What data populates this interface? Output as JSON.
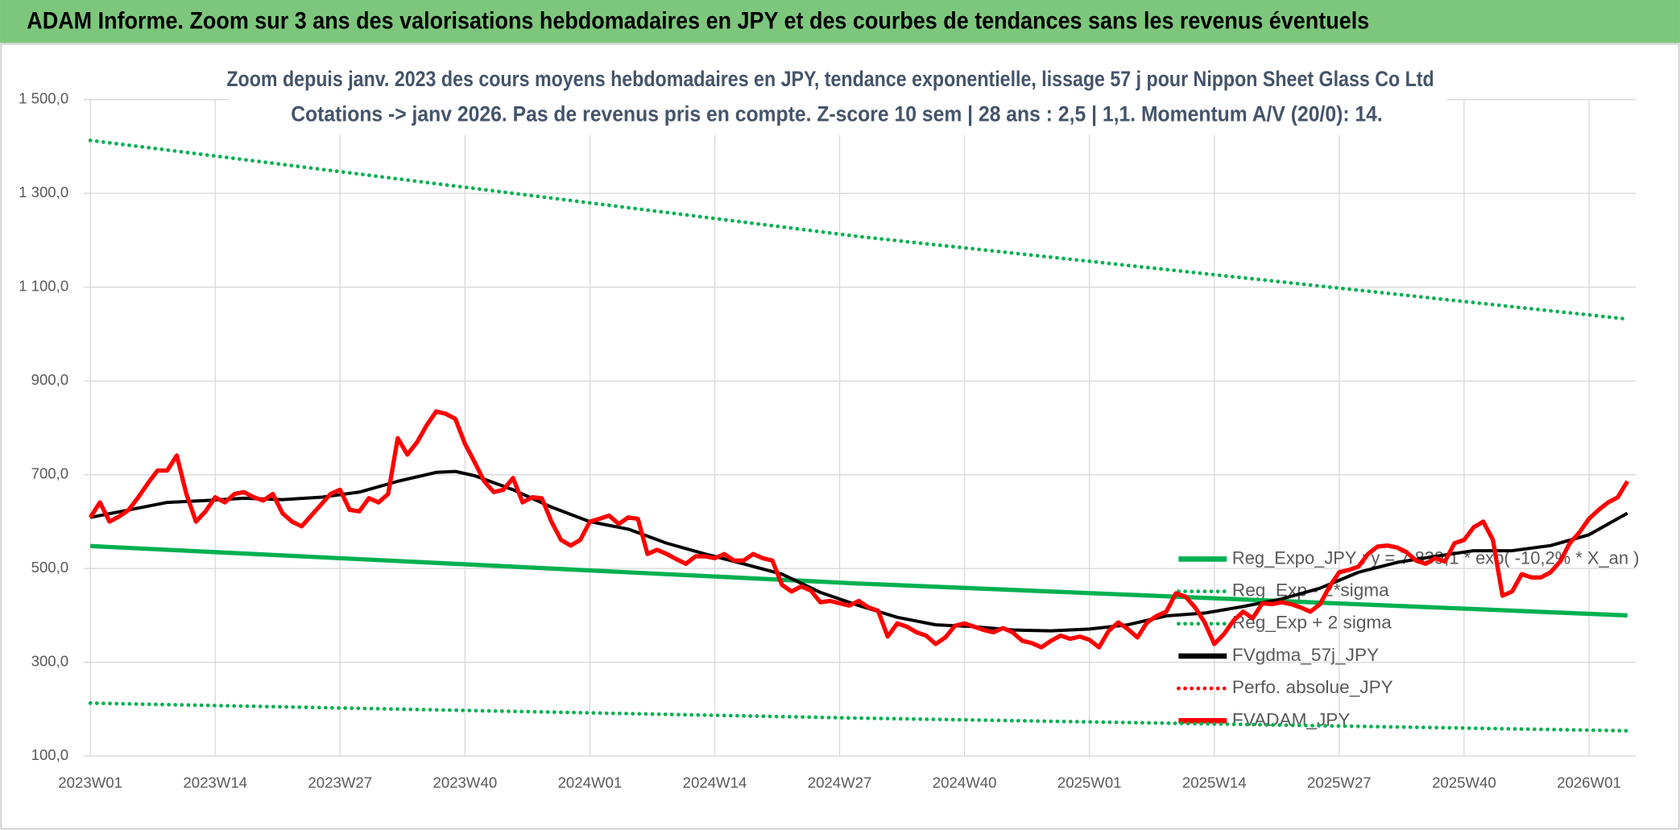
{
  "chart_data": {
    "type": "line",
    "title": "ADAM Informe. Zoom sur 3 ans des valorisations hebdomadaires en JPY et des courbes de tendances sans les revenus éventuels",
    "subtitle": [
      "Zoom depuis janv. 2023 des cours moyens hebdomadaires en JPY, tendance exponentielle, lissage 57 j pour Nippon Sheet Glass Co Ltd",
      "Cotations -> janv 2026. Pas de revenus pris en compte. Z-score 10 sem | 28 ans : 2,5 | 1,1. Momentum A/V (20/0): 14."
    ],
    "xlim": [
      -0.7,
      160.9
    ],
    "xticks": [
      {
        "value": 0,
        "label": "2023W01"
      },
      {
        "value": 13,
        "label": "2023W14"
      },
      {
        "value": 26,
        "label": "2023W27"
      },
      {
        "value": 39,
        "label": "2023W40"
      },
      {
        "value": 52,
        "label": "2024W01"
      },
      {
        "value": 65,
        "label": "2024W14"
      },
      {
        "value": 78,
        "label": "2024W27"
      },
      {
        "value": 91,
        "label": "2024W40"
      },
      {
        "value": 104,
        "label": "2025W01"
      },
      {
        "value": 117,
        "label": "2025W14"
      },
      {
        "value": 130,
        "label": "2025W27"
      },
      {
        "value": 143,
        "label": "2025W40"
      },
      {
        "value": 156,
        "label": "2026W01"
      }
    ],
    "ylim": [
      100,
      1500
    ],
    "yticks": [
      {
        "value": 100,
        "label": "100,0"
      },
      {
        "value": 300,
        "label": "300,0"
      },
      {
        "value": 500,
        "label": "500,0"
      },
      {
        "value": 700,
        "label": "700,0"
      },
      {
        "value": 900,
        "label": "900,0"
      },
      {
        "value": 1100,
        "label": "1 100,0"
      },
      {
        "value": 1300,
        "label": "1 300,0"
      },
      {
        "value": 1500,
        "label": "1 500,0"
      }
    ],
    "grid": true,
    "legend": "lower right",
    "series": [
      {
        "name": "Reg_Expo_JPY : y = 7 839,1 * exp( -10,2% * X_an )",
        "color": "#00b050",
        "line_style": "solid",
        "x": [
          0,
          80,
          160
        ],
        "values": [
          548,
          468,
          400
        ]
      },
      {
        "name": "Reg_Exp - 2*sigma",
        "color": "#00b050",
        "line_style": "dotted",
        "x": [
          0,
          80,
          160
        ],
        "values": [
          213,
          181,
          154
        ]
      },
      {
        "name": "Reg_Exp + 2 sigma",
        "color": "#00b050",
        "line_style": "dotted",
        "x": [
          0,
          80,
          160
        ],
        "values": [
          1413,
          1208,
          1032
        ]
      },
      {
        "name": "FVgdma_57j_JPY",
        "color": "#000000",
        "line_style": "solid",
        "x": [
          0,
          4,
          8,
          12,
          16,
          20,
          24,
          28,
          32,
          36,
          38,
          40,
          44,
          48,
          52,
          56,
          60,
          64,
          68,
          72,
          76,
          80,
          84,
          88,
          92,
          96,
          100,
          104,
          108,
          112,
          116,
          120,
          124,
          128,
          132,
          136,
          140,
          144,
          148,
          152,
          156,
          160
        ],
        "values": [
          609,
          625,
          641,
          645,
          650,
          647,
          652,
          663,
          686,
          705,
          707,
          698,
          668,
          631,
          600,
          584,
          554,
          531,
          510,
          488,
          449,
          421,
          396,
          380,
          376,
          369,
          367,
          371,
          380,
          399,
          405,
          419,
          435,
          458,
          492,
          513,
          526,
          538,
          538,
          549,
          572,
          618
        ]
      },
      {
        "name": "Perfo. absolue_JPY",
        "color": "#ff0000",
        "line_style": "dotted",
        "x": [],
        "values": []
      },
      {
        "name": "FVADAM_JPY",
        "color": "#ff0000",
        "line_style": "solid",
        "x": [
          0,
          1,
          2,
          3,
          4,
          5,
          6,
          7,
          8,
          9,
          10,
          11,
          12,
          13,
          14,
          15,
          16,
          17,
          18,
          19,
          20,
          21,
          22,
          23,
          24,
          25,
          26,
          27,
          28,
          29,
          30,
          31,
          32,
          33,
          34,
          35,
          36,
          37,
          38,
          39,
          40,
          41,
          42,
          43,
          44,
          45,
          46,
          47,
          48,
          49,
          50,
          51,
          52,
          53,
          54,
          55,
          56,
          57,
          58,
          59,
          60,
          61,
          62,
          63,
          64,
          65,
          66,
          67,
          68,
          69,
          70,
          71,
          72,
          73,
          74,
          75,
          76,
          77,
          78,
          79,
          80,
          81,
          82,
          83,
          84,
          85,
          86,
          87,
          88,
          89,
          90,
          91,
          92,
          93,
          94,
          95,
          96,
          97,
          98,
          99,
          100,
          101,
          102,
          103,
          104,
          105,
          106,
          107,
          108,
          109,
          110,
          111,
          112,
          113,
          114,
          115,
          116,
          117,
          118,
          119,
          120,
          121,
          122,
          123,
          124,
          125,
          126,
          127,
          128,
          129,
          130,
          131,
          132,
          133,
          134,
          135,
          136,
          137,
          138,
          139,
          140,
          141,
          142,
          143,
          144,
          145,
          146,
          147,
          148,
          149,
          150,
          151,
          152,
          153,
          154,
          155,
          156,
          157,
          158,
          159,
          160
        ],
        "values": [
          609,
          641,
          600,
          611,
          625,
          652,
          682,
          709,
          709,
          741,
          659,
          600,
          622,
          652,
          641,
          659,
          663,
          652,
          645,
          659,
          618,
          600,
          590,
          613,
          636,
          659,
          668,
          625,
          622,
          650,
          641,
          659,
          778,
          743,
          769,
          805,
          835,
          830,
          819,
          766,
          727,
          686,
          663,
          668,
          693,
          641,
          652,
          650,
          600,
          561,
          549,
          561,
          600,
          606,
          613,
          595,
          609,
          606,
          531,
          540,
          531,
          520,
          510,
          526,
          526,
          522,
          531,
          517,
          517,
          531,
          522,
          517,
          465,
          451,
          462,
          453,
          428,
          431,
          426,
          421,
          431,
          417,
          410,
          355,
          383,
          376,
          364,
          357,
          339,
          353,
          378,
          383,
          376,
          369,
          364,
          373,
          364,
          346,
          341,
          332,
          346,
          357,
          350,
          355,
          348,
          332,
          367,
          385,
          371,
          353,
          385,
          399,
          408,
          447,
          440,
          417,
          385,
          339,
          360,
          389,
          408,
          394,
          426,
          424,
          428,
          424,
          417,
          408,
          424,
          462,
          492,
          497,
          504,
          531,
          547,
          549,
          545,
          535,
          517,
          510,
          522,
          515,
          554,
          561,
          588,
          600,
          561,
          442,
          451,
          488,
          481,
          481,
          492,
          515,
          554,
          577,
          606,
          625,
          641,
          652,
          686
        ]
      }
    ]
  }
}
